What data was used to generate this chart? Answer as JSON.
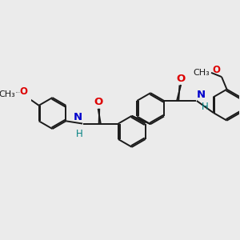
{
  "background_color": "#ebebeb",
  "bond_color": "#1a1a1a",
  "N_color": "#0000cc",
  "O_color": "#dd0000",
  "font_size": 8.5,
  "line_width": 1.4,
  "figsize": [
    3.0,
    3.0
  ],
  "dpi": 100,
  "xlim": [
    0,
    10
  ],
  "ylim": [
    0,
    10
  ]
}
